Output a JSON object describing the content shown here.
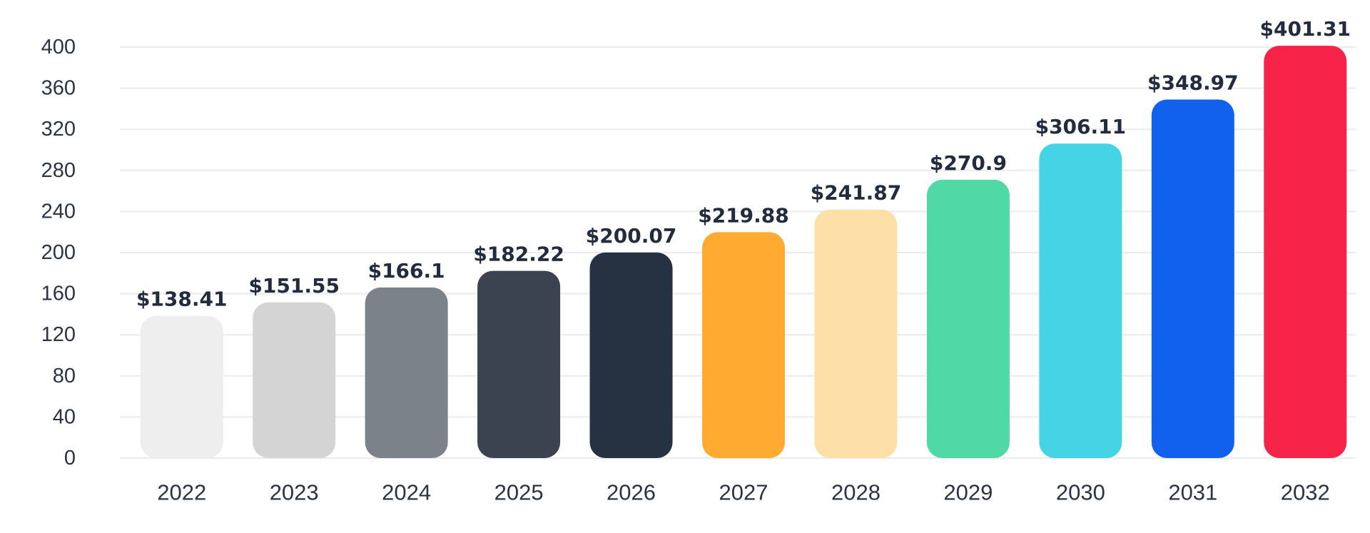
{
  "chart_data": {
    "type": "bar",
    "title": "",
    "xlabel": "",
    "ylabel": "",
    "categories": [
      "2022",
      "2023",
      "2024",
      "2025",
      "2026",
      "2027",
      "2028",
      "2029",
      "2030",
      "2031",
      "2032"
    ],
    "values": [
      138.41,
      151.55,
      166.1,
      182.22,
      200.07,
      219.88,
      241.87,
      270.9,
      306.11,
      348.97,
      401.31
    ],
    "value_labels": [
      "$138.41",
      "$151.55",
      "$166.1",
      "$182.22",
      "$200.07",
      "$219.88",
      "$241.87",
      "$270.9",
      "$306.11",
      "$348.97",
      "$401.31"
    ],
    "colors": [
      "#eeeeee",
      "#d4d4d4",
      "#7c828a",
      "#3b4351",
      "#263142",
      "#ffab31",
      "#fce0a8",
      "#50d9a4",
      "#44d4e6",
      "#1161ee",
      "#f72348"
    ],
    "ylim": [
      0,
      400
    ],
    "yticks": [
      0,
      40,
      80,
      120,
      160,
      200,
      240,
      280,
      320,
      360,
      400
    ],
    "grid": true,
    "legend": "none"
  }
}
